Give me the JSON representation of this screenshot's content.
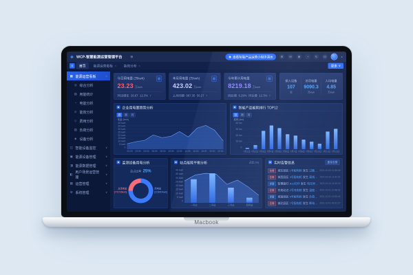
{
  "device": {
    "brand_label": "Macbook"
  },
  "navbar": {
    "logo_glyph": "◈",
    "logo_text": "WCP-智慧能源运营管理平台",
    "menu_glyph": "≡",
    "cta_icon": "◉",
    "cta_label": "查看智能产品运营小程序演示",
    "icons": [
      {
        "name": "gear-icon",
        "glyph": "⚙"
      },
      {
        "name": "mail-icon",
        "glyph": "✉"
      },
      {
        "name": "grid-icon",
        "glyph": "⊞"
      },
      {
        "name": "clock-icon",
        "glyph": "◔"
      },
      {
        "name": "refresh-icon",
        "glyph": "↻"
      },
      {
        "name": "fullscreen-icon",
        "glyph": "⊡"
      }
    ],
    "user_caret": "∨"
  },
  "tabbar": {
    "collapse_glyph": "≡",
    "tabs": [
      {
        "label": "首页"
      },
      {
        "label": "能源运营看板",
        "close": "×"
      },
      {
        "label": "能效分析",
        "close": "×"
      }
    ],
    "more_label": "更多",
    "more_caret": "∨"
  },
  "sidebar": {
    "active_group": {
      "icon": "▦",
      "label": "能源运营看板",
      "chevron": "∧"
    },
    "children": [
      {
        "icon": "◎",
        "label": "综合分析"
      },
      {
        "icon": "▤",
        "label": "用能统计"
      },
      {
        "icon": "◔",
        "label": "电能分析"
      },
      {
        "icon": "⊙",
        "label": "能效分析"
      },
      {
        "icon": "◇",
        "label": "费用分析"
      },
      {
        "icon": "▥",
        "label": "负荷分析"
      },
      {
        "icon": "◈",
        "label": "设备分析"
      }
    ],
    "groups": [
      {
        "icon": "◫",
        "label": "智能设备监控",
        "chevron": "∨"
      },
      {
        "icon": "▣",
        "label": "能源设备管理",
        "chevron": "∨"
      },
      {
        "icon": "◨",
        "label": "能源数据管理",
        "chevron": "∨"
      },
      {
        "icon": "◧",
        "label": "用户场景运营管理",
        "chevron": "∨"
      },
      {
        "icon": "▦",
        "label": "运营管理",
        "chevron": "∨"
      },
      {
        "icon": "⚙",
        "label": "系统管理",
        "chevron": "∨"
      }
    ]
  },
  "kpi_cards": [
    {
      "label": "今日用电量 (万kwh)",
      "value": "23.23",
      "unit": "万kwh",
      "value_color": "#ff5d6c",
      "sub_label": "环比增长",
      "sub_value": "26.67",
      "sub_pct": "12.3%",
      "trend": "↑"
    },
    {
      "label": "本月用电量 (万kwh)",
      "value": "423.02",
      "unit": "万kwh",
      "value_color": "#c9d2ff",
      "sub_label": "上月同期",
      "sub_value": "967.35",
      "sub_pct": "56.27",
      "trend": "↑"
    },
    {
      "label": "今年累计用电量",
      "value": "8219.18",
      "unit": "万kwh",
      "value_color": "#8f86ff",
      "sub_label": "同比增",
      "sub_value": "6.29%",
      "sub_label2": "环比增",
      "sub_pct": "12.3%",
      "trend": "↑"
    }
  ],
  "stats_card": {
    "items": [
      {
        "label": "接入设备",
        "value": "107",
        "unit": "台"
      },
      {
        "label": "总用电量",
        "value": "9090.3",
        "unit": "万kwh"
      },
      {
        "label": "人均电量",
        "value": "4.85",
        "unit": "万kwh"
      }
    ]
  },
  "chart_data": [
    {
      "type": "area",
      "title": "企业用电量趋势分析",
      "legend": "电量 (kwh)",
      "toggles": [
        "日",
        "周",
        "月"
      ],
      "x": [
        "00:00",
        "02:00",
        "04:00",
        "06:00",
        "08:00",
        "10:00",
        "12:00",
        "14:00",
        "16:00",
        "18:00",
        "20:00",
        "22:00"
      ],
      "values": [
        8,
        11,
        13,
        21,
        17,
        19,
        26,
        18,
        31,
        35,
        28,
        12
      ],
      "y_ticks": [
        "40 kwh",
        "35 kwh",
        "30 kwh",
        "25 kwh",
        "20 kwh",
        "15 kwh",
        "10 kwh",
        "5 kwh",
        "0"
      ],
      "ylim": [
        0,
        40
      ],
      "grid": true,
      "legend_position": "top-left"
    },
    {
      "type": "bar",
      "title": "智能产品能耗排行 TOP12",
      "legend": "能耗 (kw)",
      "toggles": [
        "日",
        "周",
        "月"
      ],
      "x": [
        "7月1日",
        "7月2日",
        "7月3日",
        "7月4日",
        "7月5日",
        "7月6日",
        "7月7日",
        "7月8日",
        "7月9日",
        "7月10日",
        "7月11日",
        "7月12日"
      ],
      "values": [
        2,
        6,
        27,
        35,
        31,
        22,
        20,
        14,
        11,
        8,
        26,
        30
      ],
      "y_ticks": [
        "40 kw",
        "30 kw",
        "20 kw",
        "10 kw",
        "0"
      ],
      "ylim": [
        0,
        40
      ],
      "grid": true
    },
    {
      "type": "donut",
      "title": "监测设备用电分析",
      "center_label": "总占比率",
      "center_value": "25%",
      "segments": [
        {
          "name": "总用电量",
          "detail": "[779705kwh]",
          "value": 25,
          "color": "#f56c7b"
        },
        {
          "name": "用电量",
          "detail": "[215067kwh]",
          "value": 75,
          "color": "#3a7bfd"
        }
      ]
    },
    {
      "type": "combo",
      "title": "站点能耗平衡分析",
      "legend": "占比 (%)",
      "x": [
        "一号站",
        "二号站",
        "三号站",
        "四号站"
      ],
      "bars": [
        28,
        35,
        18,
        6
      ],
      "area": [
        26,
        33,
        35,
        34,
        22,
        27,
        19,
        9
      ],
      "y_ticks": [
        "40 kwh",
        "35 kwh",
        "30 kwh",
        "25 kwh",
        "20 kwh",
        "15 kwh",
        "10 kwh",
        "5 kwh",
        "0"
      ],
      "ylim": [
        0,
        40
      ],
      "grid": true
    }
  ],
  "alarm_panel": {
    "title": "实时告警信息",
    "more_label": "更多告警",
    "rows": [
      {
        "tag": "告警",
        "pre": "城东园区",
        "hl1": "1号配电柜",
        "mid": "发生",
        "hl2": "过载告警",
        "post": "请及时处理",
        "time": "2021-10-01 12:36:08"
      },
      {
        "tag": "告警",
        "pre": "城西园区",
        "hl1": "3号配电柜",
        "mid": "发生",
        "hl2": "离线告警",
        "post": "请及时处理",
        "time": "2021-10-01 11:52:31"
      },
      {
        "tag": "提醒",
        "pre": "智慧路灯",
        "hl1": "A12灯杆",
        "mid": "发生",
        "hl2": "电压异常",
        "post": "请及时处理",
        "time": "2021-10-01 11:20:15"
      },
      {
        "tag": "告警",
        "pre": "充电站点",
        "hl1": "2号充电桩",
        "mid": "发生",
        "hl2": "温度过高",
        "post": "请及时处理",
        "time": "2021-10-01 10:48:02"
      },
      {
        "tag": "提醒",
        "pre": "城南园区",
        "hl1": "5号配电柜",
        "mid": "发生",
        "hl2": "负荷预警",
        "post": "请及时处理",
        "time": "2021-10-01 10:05:44"
      },
      {
        "tag": "告警",
        "pre": "城北园区",
        "hl1": "7号配电柜",
        "mid": "发生",
        "hl2": "断电告警",
        "post": "请及时处理",
        "time": "2021-10-01 09:31:27"
      }
    ]
  },
  "colors": {
    "accent": "#2e6cf5",
    "alert": "#f25f6d",
    "bar_top": "#7ab5ff",
    "bar_bottom": "#2a63e0"
  }
}
